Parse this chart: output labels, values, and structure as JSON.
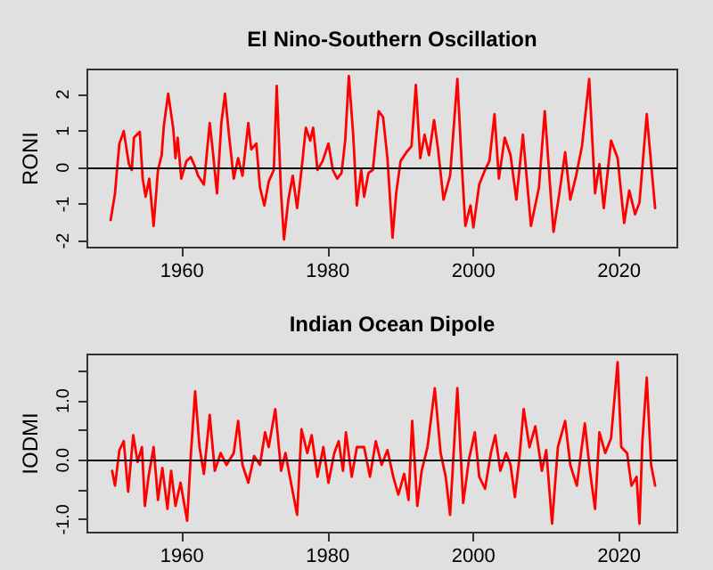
{
  "chart_data": [
    {
      "type": "line",
      "title": "El Nino-Southern Oscillation",
      "ylabel": "RONI",
      "xlim": [
        1947,
        2028
      ],
      "xticks": [
        1960,
        1980,
        2000,
        2020
      ],
      "ylim": [
        -2.18,
        2.68
      ],
      "yticks": [
        -2,
        -1,
        0,
        1,
        2
      ],
      "grid": false,
      "marker": "none",
      "line_style": "solid",
      "ref_lines": [
        {
          "axis": "y",
          "value": 0,
          "color": "#000000"
        }
      ],
      "series": [
        {
          "color": "#ff0000",
          "x": [
            1950.2,
            1950.8,
            1951.0,
            1951.4,
            1952.0,
            1952.7,
            1953.1,
            1953.4,
            1954.2,
            1954.6,
            1955.0,
            1955.5,
            1956.1,
            1956.7,
            1957.2,
            1957.5,
            1958.1,
            1958.8,
            1959.1,
            1959.4,
            1959.9,
            1960.6,
            1961.2,
            1961.8,
            1962.2,
            1963.0,
            1963.8,
            1964.2,
            1964.8,
            1965.4,
            1965.9,
            1966.4,
            1967.1,
            1967.7,
            1968.3,
            1969.1,
            1969.5,
            1970.2,
            1970.7,
            1971.3,
            1971.9,
            1972.6,
            1973.0,
            1973.6,
            1974.0,
            1974.6,
            1975.2,
            1975.8,
            1976.4,
            1977.0,
            1977.6,
            1978.0,
            1978.6,
            1979.3,
            1980.1,
            1980.7,
            1981.3,
            1981.9,
            1982.4,
            1982.9,
            1983.5,
            1984.0,
            1984.6,
            1985.0,
            1985.6,
            1986.2,
            1987.0,
            1987.6,
            1988.2,
            1988.9,
            1989.4,
            1990.0,
            1990.8,
            1991.5,
            1992.1,
            1992.7,
            1993.3,
            1993.9,
            1994.6,
            1995.1,
            1995.9,
            1996.8,
            1997.8,
            1998.4,
            1998.9,
            1999.6,
            2000.0,
            2000.8,
            2001.6,
            2002.2,
            2002.9,
            2003.5,
            2004.3,
            2005.1,
            2005.9,
            2006.8,
            2007.9,
            2009.0,
            2009.8,
            2010.6,
            2011.0,
            2011.8,
            2012.6,
            2013.3,
            2014.1,
            2014.9,
            2015.9,
            2016.7,
            2017.3,
            2017.9,
            2018.9,
            2019.8,
            2020.7,
            2021.4,
            2022.2,
            2022.8,
            2023.8,
            2024.4,
            2024.95
          ],
          "values": [
            -1.43,
            -0.7,
            -0.22,
            0.66,
            1.0,
            0.1,
            -0.06,
            0.82,
            0.98,
            -0.3,
            -0.79,
            -0.3,
            -1.59,
            -0.06,
            0.34,
            1.14,
            2.02,
            1.06,
            0.26,
            0.82,
            -0.3,
            0.18,
            0.29,
            0.02,
            -0.22,
            -0.46,
            1.22,
            0.5,
            -0.7,
            1.22,
            2.02,
            0.98,
            -0.3,
            0.26,
            -0.22,
            1.22,
            0.5,
            0.66,
            -0.54,
            -1.03,
            -0.38,
            -0.06,
            2.23,
            -0.7,
            -1.96,
            -0.87,
            -0.22,
            -1.1,
            -0.06,
            1.09,
            0.74,
            1.09,
            -0.06,
            0.18,
            0.66,
            -0.06,
            -0.3,
            -0.14,
            0.74,
            2.5,
            0.9,
            -1.03,
            -0.06,
            -0.79,
            -0.14,
            -0.06,
            1.54,
            1.38,
            0.26,
            -1.91,
            -0.7,
            0.18,
            0.42,
            0.58,
            2.26,
            0.26,
            0.9,
            0.34,
            1.3,
            0.58,
            -0.87,
            -0.22,
            2.42,
            0.1,
            -1.59,
            -1.03,
            -1.63,
            -0.46,
            -0.06,
            0.18,
            1.46,
            -0.3,
            0.82,
            0.34,
            -0.87,
            0.9,
            -1.59,
            -0.54,
            1.54,
            -0.7,
            -1.75,
            -0.7,
            0.42,
            -0.87,
            -0.22,
            0.58,
            2.42,
            -0.7,
            0.1,
            -1.1,
            0.74,
            0.26,
            -1.51,
            -0.62,
            -1.27,
            -0.95,
            1.46,
            0.1,
            -1.1
          ]
        }
      ]
    },
    {
      "type": "line",
      "title": "Indian Ocean Dipole",
      "ylabel": "IODMI",
      "xlim": [
        1947,
        2028
      ],
      "xticks": [
        1960,
        1980,
        2000,
        2020
      ],
      "ylim": [
        -1.22,
        1.78
      ],
      "yticks": [
        {
          "value": -1.0,
          "label": "-1.0"
        },
        {
          "value": -0.5,
          "label": null
        },
        {
          "value": 0,
          "label": "0.0"
        },
        {
          "value": 0.5,
          "label": null
        },
        {
          "value": 1.0,
          "label": "1.0"
        },
        {
          "value": 1.5,
          "label": null
        }
      ],
      "grid": false,
      "marker": "none",
      "line_style": "solid",
      "ref_lines": [
        {
          "axis": "y",
          "value": 0,
          "color": "#000000"
        }
      ],
      "series": [
        {
          "color": "#ff0000",
          "x": [
            1950.4,
            1950.8,
            1951.4,
            1952.0,
            1952.6,
            1953.3,
            1953.9,
            1954.5,
            1954.9,
            1955.4,
            1956.1,
            1956.7,
            1957.3,
            1958.0,
            1958.5,
            1959.1,
            1959.8,
            1960.7,
            1961.2,
            1961.8,
            1962.4,
            1963.0,
            1963.8,
            1964.5,
            1965.3,
            1966.1,
            1967.1,
            1967.7,
            1968.3,
            1969.1,
            1969.9,
            1970.7,
            1971.4,
            1971.9,
            1972.8,
            1973.6,
            1974.2,
            1974.8,
            1975.8,
            1976.4,
            1977.2,
            1977.8,
            1978.6,
            1979.4,
            1980.1,
            1980.9,
            1981.5,
            1982.1,
            1982.5,
            1983.3,
            1984.0,
            1985.0,
            1985.8,
            1986.6,
            1987.4,
            1988.2,
            1989.0,
            1989.7,
            1990.5,
            1991.1,
            1991.6,
            1992.3,
            1992.9,
            1993.7,
            1994.7,
            1995.5,
            1996.2,
            1996.8,
            1997.8,
            1998.6,
            1999.4,
            2000.2,
            2000.8,
            2001.6,
            2002.4,
            2003.0,
            2003.7,
            2004.5,
            2005.1,
            2005.7,
            2006.3,
            2006.9,
            2007.7,
            2008.5,
            2009.4,
            2010.0,
            2010.8,
            2011.6,
            2012.6,
            2013.3,
            2014.2,
            2015.3,
            2016.0,
            2016.7,
            2017.3,
            2018.1,
            2018.9,
            2019.8,
            2020.3,
            2021.1,
            2021.7,
            2022.4,
            2022.8,
            2023.2,
            2023.8,
            2024.4,
            2024.95
          ],
          "values": [
            -0.18,
            -0.43,
            0.17,
            0.32,
            -0.53,
            0.42,
            -0.03,
            0.22,
            -0.77,
            -0.28,
            0.22,
            -0.67,
            -0.13,
            -0.82,
            -0.18,
            -0.77,
            -0.38,
            -1.02,
            0.07,
            1.16,
            0.22,
            -0.23,
            0.76,
            -0.18,
            0.12,
            -0.08,
            0.12,
            0.66,
            -0.08,
            -0.38,
            0.07,
            -0.08,
            0.47,
            0.22,
            0.86,
            -0.18,
            0.12,
            -0.28,
            -0.92,
            0.52,
            0.12,
            0.42,
            -0.28,
            0.22,
            -0.38,
            0.12,
            0.32,
            -0.18,
            0.47,
            -0.28,
            0.22,
            0.22,
            -0.28,
            0.32,
            -0.08,
            0.17,
            -0.28,
            -0.58,
            -0.23,
            -0.67,
            0.66,
            -0.77,
            -0.18,
            0.22,
            1.21,
            0.12,
            -0.28,
            -0.92,
            1.21,
            -0.72,
            0.02,
            0.47,
            -0.28,
            -0.48,
            0.12,
            0.42,
            -0.18,
            0.12,
            -0.08,
            -0.62,
            0.02,
            0.86,
            0.22,
            0.57,
            -0.18,
            0.17,
            -1.07,
            0.22,
            0.66,
            -0.08,
            -0.43,
            0.62,
            -0.18,
            -0.82,
            0.47,
            0.12,
            0.37,
            1.65,
            0.22,
            0.12,
            -0.43,
            -0.28,
            -1.07,
            0.32,
            1.39,
            -0.08,
            -0.43
          ]
        }
      ]
    }
  ]
}
